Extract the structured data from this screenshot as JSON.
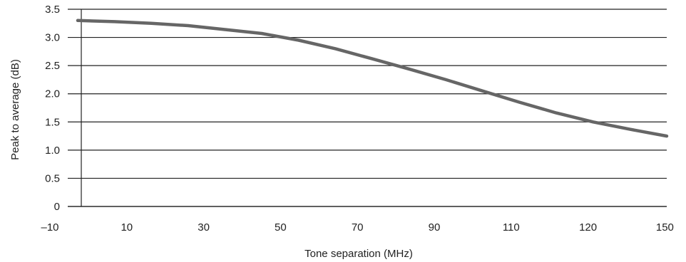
{
  "chart_data": {
    "type": "line",
    "xlabel": "Tone separation (MHz)",
    "ylabel": "Peak to average (dB)",
    "ylim": [
      0,
      3.5
    ],
    "y_ticks": [
      "0",
      "0.5",
      "1.0",
      "1.5",
      "2.0",
      "2.5",
      "3.0",
      "3.5"
    ],
    "x_tick_labels": [
      "–10",
      "10",
      "30",
      "50",
      "70",
      "90",
      "110",
      "120",
      "150"
    ],
    "grid": "horizontal",
    "legend": "none",
    "series_color": "#666666",
    "series": [
      {
        "x_tick_index": [
          0,
          0.5,
          1,
          1.5,
          2,
          2.5,
          3,
          3.5,
          4,
          4.5,
          5,
          5.5,
          6,
          6.5,
          7,
          7.5,
          8
        ],
        "values": [
          3.3,
          3.28,
          3.25,
          3.21,
          3.14,
          3.07,
          2.95,
          2.8,
          2.62,
          2.44,
          2.25,
          2.05,
          1.85,
          1.66,
          1.5,
          1.37,
          1.25
        ]
      }
    ]
  }
}
